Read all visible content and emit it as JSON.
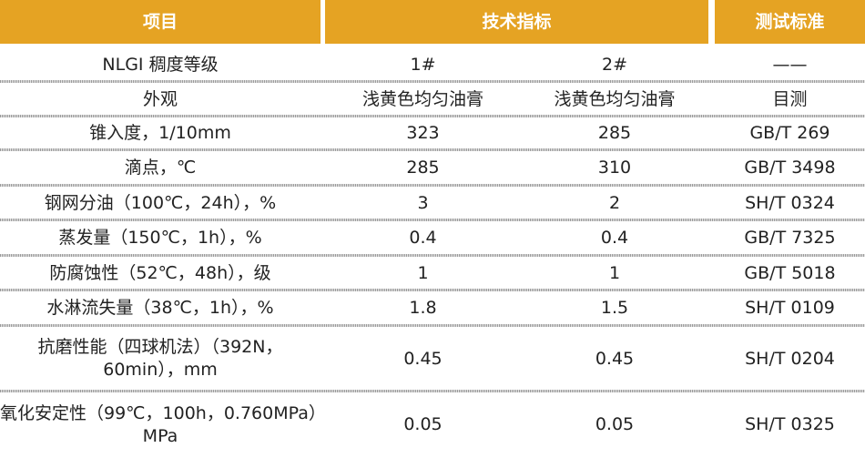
{
  "table": {
    "header": [
      "项目",
      "技术指标",
      "测试标准"
    ],
    "rows": [
      [
        "NLGI 稠度等级",
        "1#",
        "2#",
        "——"
      ],
      [
        "外观",
        "浅黄色均匀油膏",
        "浅黄色均匀油膏",
        "目测"
      ],
      [
        "锥入度，1/10mm",
        "323",
        "285",
        "GB/T 269"
      ],
      [
        "滴点，℃",
        "285",
        "310",
        "GB/T 3498"
      ],
      [
        "钢网分油（100℃，24h），%",
        "3",
        "2",
        "SH/T 0324"
      ],
      [
        "蒸发量（150℃，1h），%",
        "0.4",
        "0.4",
        "GB/T 7325"
      ],
      [
        "防腐蚀性（52℃，48h），级",
        "1",
        "1",
        "GB/T 5018"
      ],
      [
        "水淋流失量（38℃，1h），%",
        "1.8",
        "1.5",
        "SH/T 0109"
      ],
      [
        [
          "抗磨性能（四球机法）（392N，",
          "60min），mm"
        ],
        "0.45",
        "0.45",
        "SH/T 0204"
      ],
      [
        [
          "氧化安定性（99℃，100h，0.760MPa）",
          "MPa"
        ],
        "0.05",
        "0.05",
        "SH/T 0325"
      ]
    ]
  }
}
